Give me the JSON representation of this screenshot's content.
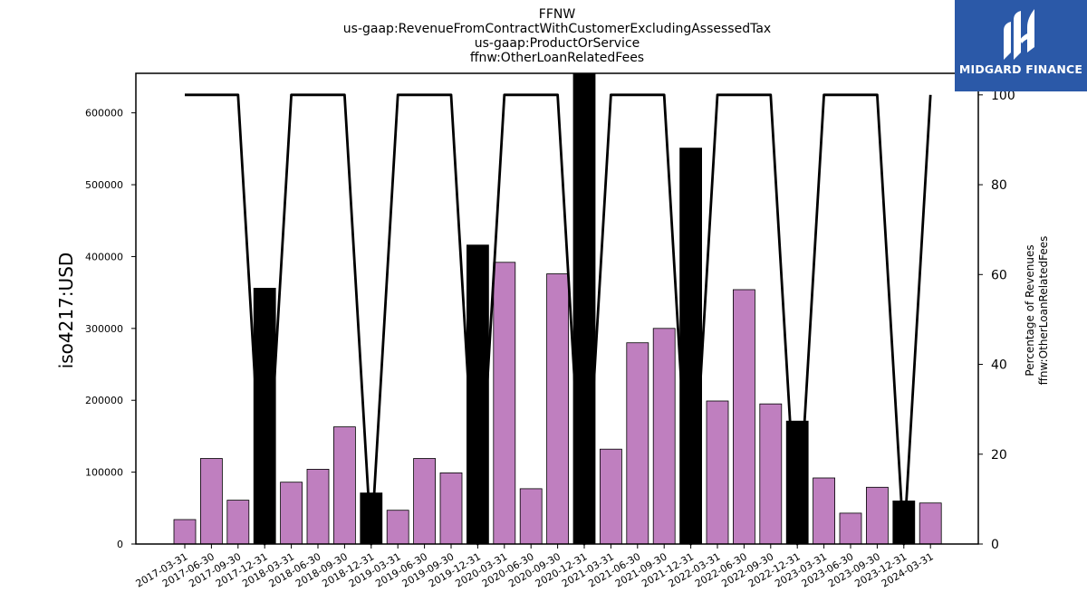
{
  "chart_data": {
    "type": "bar",
    "title_lines": [
      "FFNW",
      "us-gaap:RevenueFromContractWithCustomerExcludingAssessedTax",
      "us-gaap:ProductOrService",
      "ffnw:OtherLoanRelatedFees"
    ],
    "ylabel": "iso4217:USD",
    "y2label_lines": [
      "Percentage of Revenues",
      "ffnw:OtherLoanRelatedFees"
    ],
    "ylim": [
      0,
      655000
    ],
    "y2lim": [
      0,
      104.8
    ],
    "yticks": [
      0,
      100000,
      200000,
      300000,
      400000,
      500000,
      600000
    ],
    "y2ticks": [
      0,
      20,
      40,
      60,
      80,
      100
    ],
    "categories": [
      "2017-03-31",
      "2017-06-30",
      "2017-09-30",
      "2017-12-31",
      "2018-03-31",
      "2018-06-30",
      "2018-09-30",
      "2018-12-31",
      "2019-03-31",
      "2019-06-30",
      "2019-09-30",
      "2019-12-31",
      "2020-03-31",
      "2020-06-30",
      "2020-09-30",
      "2020-12-31",
      "2021-03-31",
      "2021-06-30",
      "2021-09-30",
      "2021-12-31",
      "2022-03-31",
      "2022-06-30",
      "2022-09-30",
      "2022-12-31",
      "2023-03-31",
      "2023-06-30",
      "2023-09-30",
      "2023-12-31",
      "2024-03-31"
    ],
    "series": [
      {
        "values": [
          34000,
          119000,
          61000,
          356000,
          86000,
          104000,
          163000,
          71000,
          47000,
          119000,
          99000,
          416000,
          392000,
          77000,
          376000,
          660000,
          132000,
          280000,
          300000,
          551000,
          199000,
          354000,
          195000,
          171000,
          92000,
          43000,
          79000,
          60000,
          57000
        ],
        "bar_colors": [
          "#bf7fbf",
          "#bf7fbf",
          "#bf7fbf",
          "#000000",
          "#bf7fbf",
          "#bf7fbf",
          "#bf7fbf",
          "#000000",
          "#bf7fbf",
          "#bf7fbf",
          "#bf7fbf",
          "#000000",
          "#bf7fbf",
          "#bf7fbf",
          "#bf7fbf",
          "#000000",
          "#bf7fbf",
          "#bf7fbf",
          "#bf7fbf",
          "#000000",
          "#bf7fbf",
          "#bf7fbf",
          "#bf7fbf",
          "#000000",
          "#bf7fbf",
          "#bf7fbf",
          "#bf7fbf",
          "#000000",
          "#bf7fbf"
        ]
      },
      {
        "type": "line",
        "axis": "right",
        "color": "#000000",
        "values": [
          100,
          100,
          100,
          0,
          100,
          100,
          100,
          0,
          100,
          100,
          100,
          0,
          100,
          100,
          100,
          0,
          100,
          100,
          100,
          0,
          100,
          100,
          100,
          0,
          100,
          100,
          100,
          0,
          100
        ]
      }
    ],
    "grid": false
  },
  "logo": {
    "text": "MIDGARD FINANCE",
    "background": "#2b59a8",
    "icon": "midgard-finance-logo-icon"
  }
}
